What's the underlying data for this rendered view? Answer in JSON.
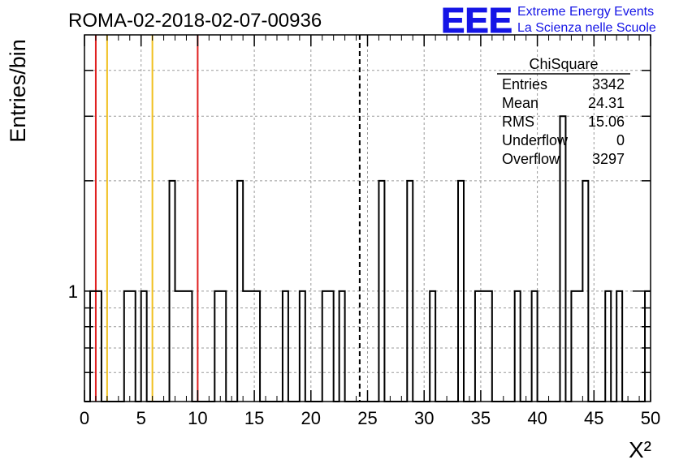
{
  "header": {
    "title": "ROMA-02-2018-02-07-00936",
    "logo_text": "EEE",
    "logo_line1": "Extreme Energy Events",
    "logo_line2": "La Scienza nelle Scuole"
  },
  "stats": {
    "name": "ChiSquare",
    "rows": [
      {
        "label": "Entries",
        "value": "3342"
      },
      {
        "label": "Mean",
        "value": "24.31"
      },
      {
        "label": "RMS",
        "value": "15.06"
      },
      {
        "label": "Underflow",
        "value": "0"
      },
      {
        "label": "Overflow",
        "value": "3297"
      }
    ]
  },
  "chart_data": {
    "type": "histogram",
    "ylabel": "Entries/bin",
    "xlabel": "X²",
    "xlim": [
      0,
      50
    ],
    "ylim": [
      0.5,
      5
    ],
    "yscale": "log",
    "grid": true,
    "bin_width": 0.5,
    "x_ticks": [
      0,
      5,
      10,
      15,
      20,
      25,
      30,
      35,
      40,
      45,
      50
    ],
    "y_tick_labels": [
      {
        "value": 1,
        "label": "1"
      }
    ],
    "bins": [
      {
        "x0": 0.5,
        "x1": 1.5,
        "y": 1
      },
      {
        "x0": 3.5,
        "x1": 4.5,
        "y": 1
      },
      {
        "x0": 5.0,
        "x1": 5.5,
        "y": 1
      },
      {
        "x0": 7.5,
        "x1": 8.0,
        "y": 2
      },
      {
        "x0": 8.0,
        "x1": 9.5,
        "y": 1
      },
      {
        "x0": 11.5,
        "x1": 12.5,
        "y": 1
      },
      {
        "x0": 13.5,
        "x1": 14.0,
        "y": 2
      },
      {
        "x0": 14.0,
        "x1": 15.5,
        "y": 1
      },
      {
        "x0": 17.5,
        "x1": 18.0,
        "y": 1
      },
      {
        "x0": 19.0,
        "x1": 19.5,
        "y": 1
      },
      {
        "x0": 21.0,
        "x1": 21.5,
        "y": 1
      },
      {
        "x0": 21.5,
        "x1": 22.0,
        "y": 1
      },
      {
        "x0": 22.5,
        "x1": 23.0,
        "y": 1
      },
      {
        "x0": 26.0,
        "x1": 26.5,
        "y": 2
      },
      {
        "x0": 28.5,
        "x1": 29.0,
        "y": 2
      },
      {
        "x0": 30.5,
        "x1": 31.0,
        "y": 1
      },
      {
        "x0": 33.0,
        "x1": 33.5,
        "y": 2
      },
      {
        "x0": 34.5,
        "x1": 36.0,
        "y": 1
      },
      {
        "x0": 38.0,
        "x1": 38.5,
        "y": 1
      },
      {
        "x0": 39.5,
        "x1": 40.0,
        "y": 1
      },
      {
        "x0": 42.0,
        "x1": 42.5,
        "y": 3
      },
      {
        "x0": 43.0,
        "x1": 44.0,
        "y": 1
      },
      {
        "x0": 44.0,
        "x1": 44.5,
        "y": 2
      },
      {
        "x0": 46.0,
        "x1": 46.5,
        "y": 1
      },
      {
        "x0": 47.0,
        "x1": 47.5,
        "y": 1
      },
      {
        "x0": 49.5,
        "x1": 50.0,
        "y": 1
      }
    ],
    "vertical_lines": [
      {
        "x": 1,
        "color": "#e02020",
        "style": "solid"
      },
      {
        "x": 2,
        "color": "#f0c020",
        "style": "solid"
      },
      {
        "x": 6,
        "color": "#f0c020",
        "style": "solid"
      },
      {
        "x": 10,
        "color": "#e02020",
        "style": "solid"
      },
      {
        "x": 24.31,
        "color": "#000000",
        "style": "dashed"
      }
    ]
  }
}
